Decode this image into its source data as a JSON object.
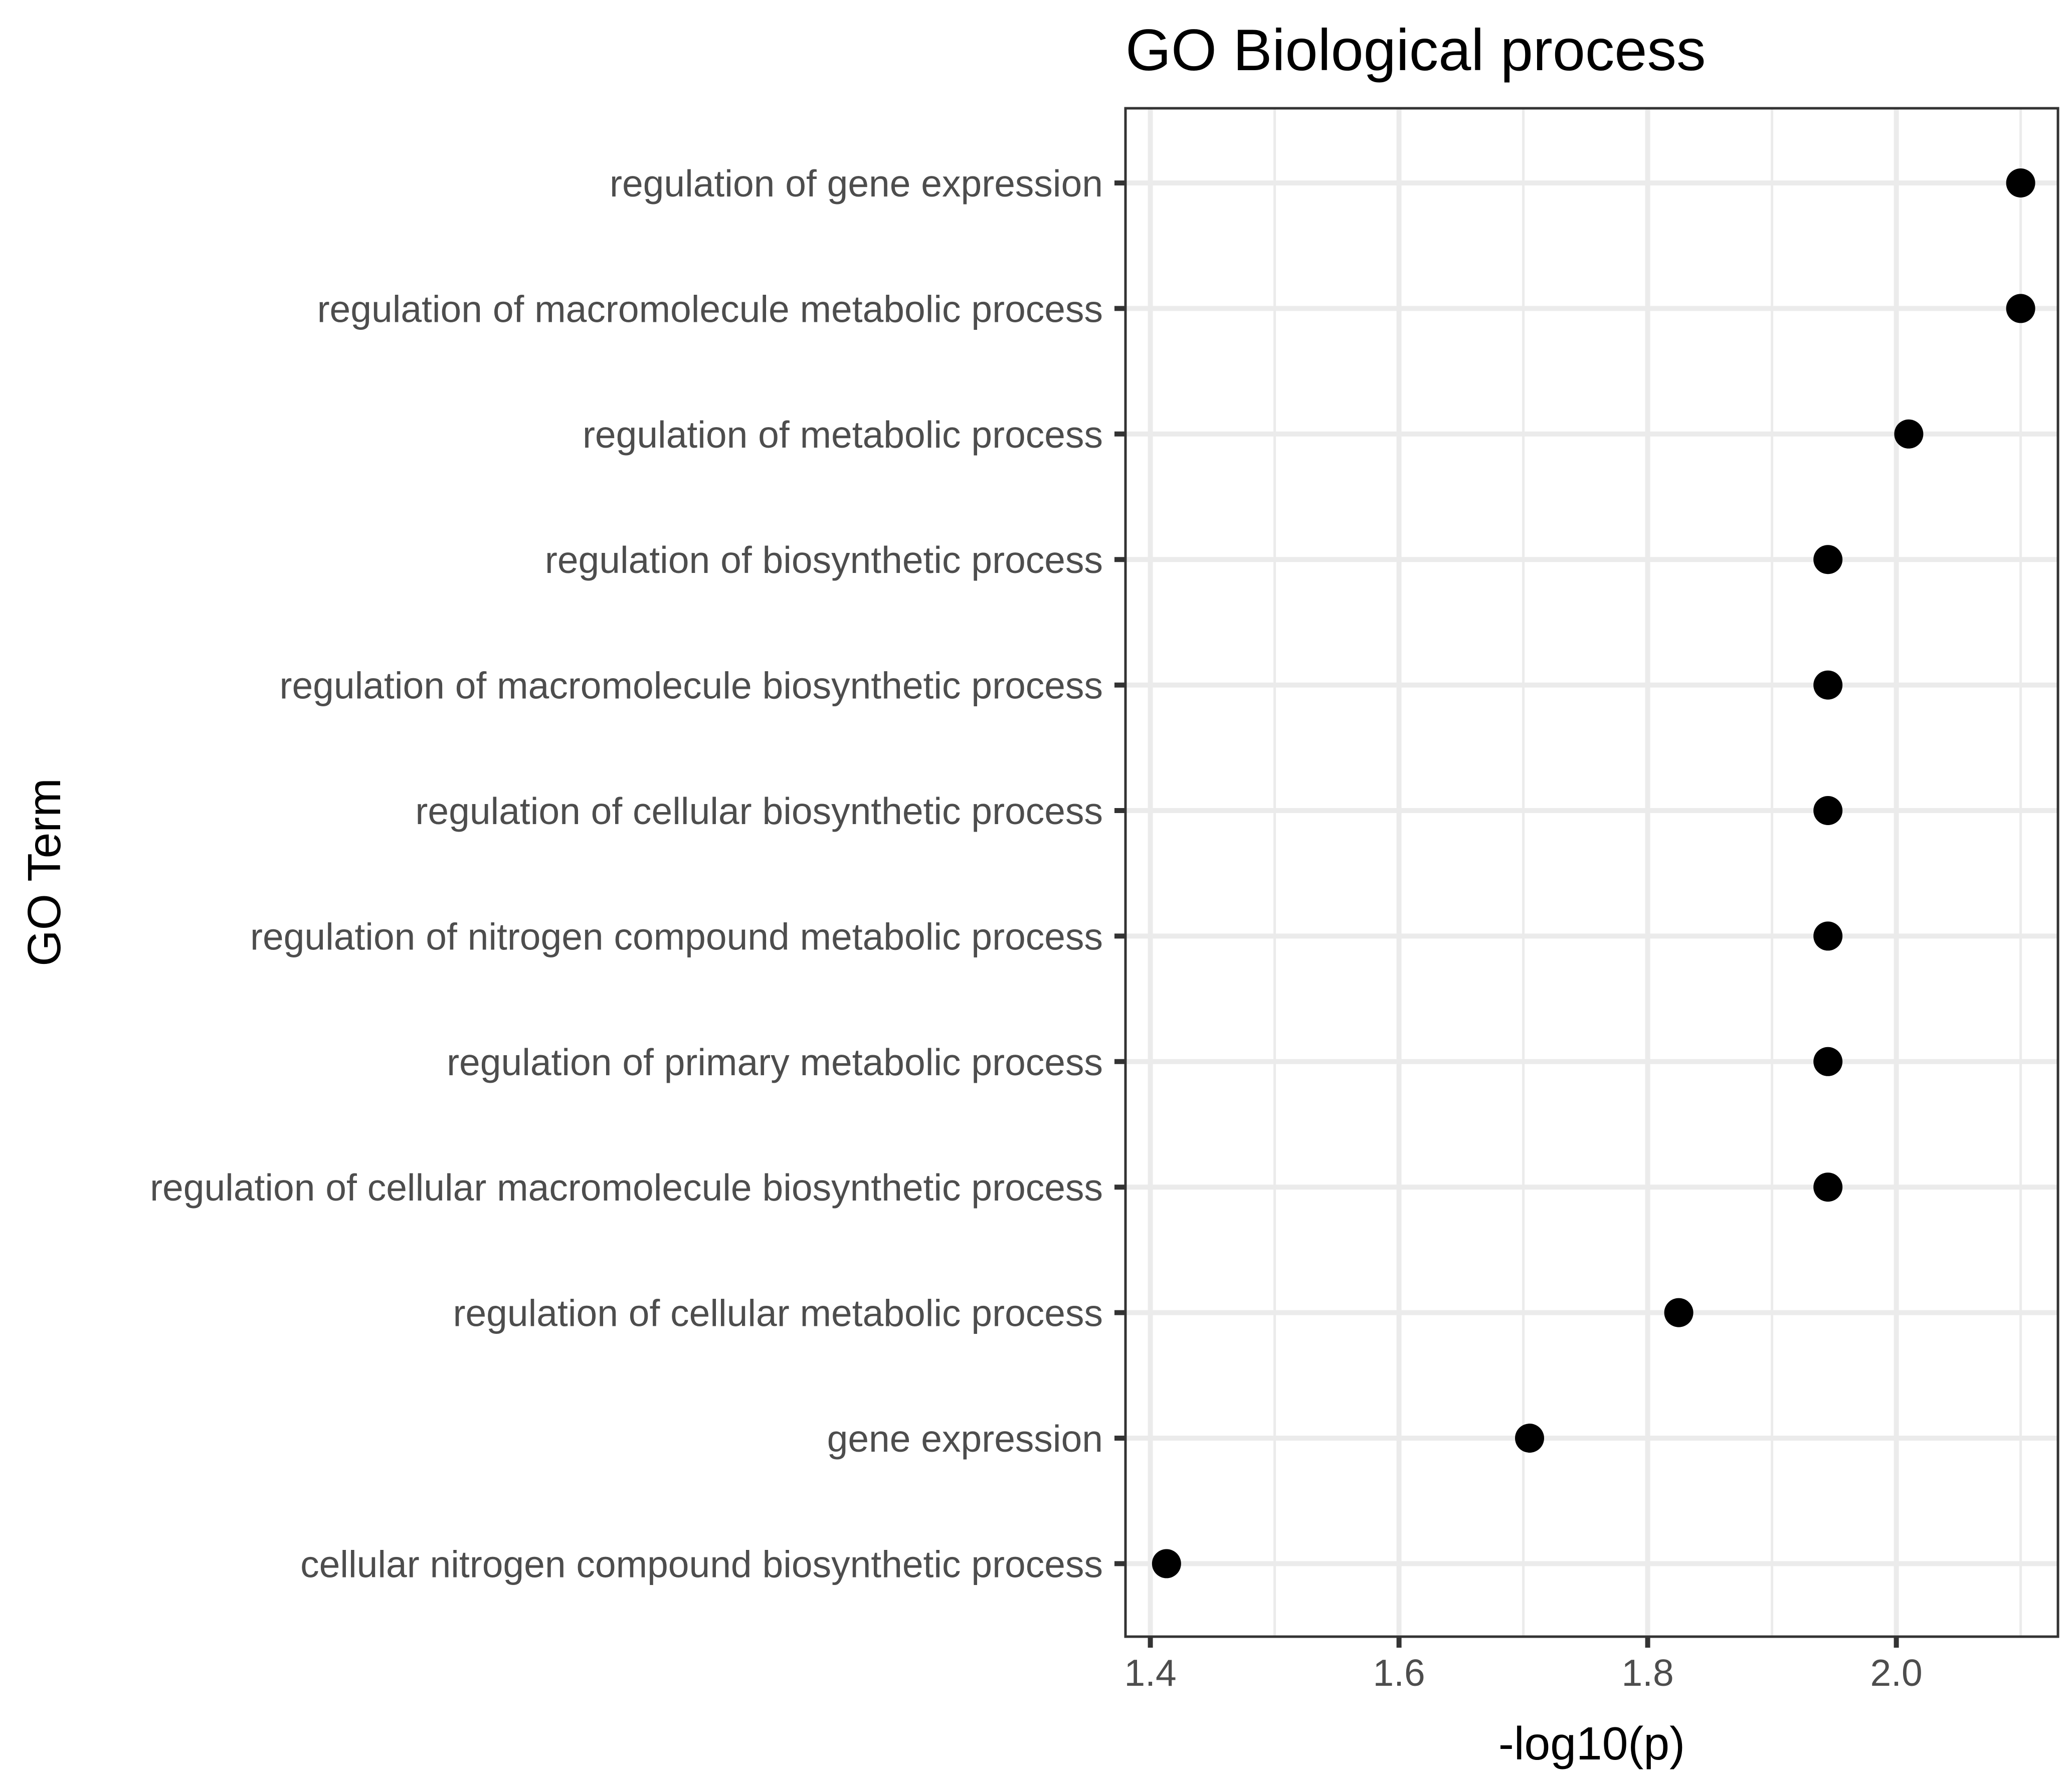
{
  "chart_data": {
    "type": "scatter",
    "title": "GO Biological process",
    "xlabel": "-log10(p)",
    "ylabel": "GO Term",
    "xlim": [
      1.38,
      2.13
    ],
    "x_ticks": [
      "1.4",
      "1.6",
      "1.8",
      "2.0"
    ],
    "x_tick_values": [
      1.4,
      1.6,
      1.8,
      2.0
    ],
    "grid": true,
    "categories": [
      "regulation of gene expression",
      "regulation of macromolecule metabolic process",
      "regulation of metabolic process",
      "regulation of biosynthetic process",
      "regulation of macromolecule biosynthetic process",
      "regulation of cellular biosynthetic process",
      "regulation of nitrogen compound metabolic process",
      "regulation of primary metabolic process",
      "regulation of cellular macromolecule biosynthetic process",
      "regulation of cellular metabolic process",
      "gene expression",
      "cellular nitrogen compound biosynthetic process"
    ],
    "values": [
      2.1,
      2.1,
      2.01,
      1.945,
      1.945,
      1.945,
      1.945,
      1.945,
      1.945,
      1.825,
      1.705,
      1.413
    ],
    "point_color": "#000000"
  }
}
